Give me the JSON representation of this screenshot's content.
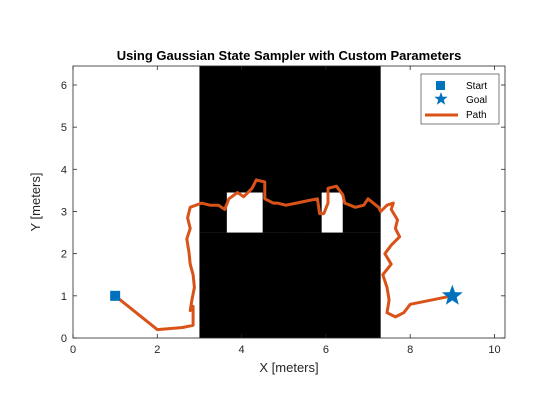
{
  "chart_data": {
    "type": "scatter",
    "title": "Using Gaussian State Sampler with Custom Parameters",
    "xlabel": "X [meters]",
    "ylabel": "Y [meters]",
    "xlim": [
      0,
      10.25
    ],
    "ylim": [
      0,
      6.45
    ],
    "xticks": [
      0,
      2,
      4,
      6,
      8,
      10
    ],
    "yticks": [
      0,
      1,
      2,
      3,
      4,
      5,
      6
    ],
    "grid": false,
    "legend_position": "top-right",
    "colors": {
      "start": "#0072BD",
      "goal": "#0072BD",
      "path": "#D95319",
      "obstacle": "#000000",
      "axes": "#262626"
    },
    "obstacles": [
      [
        3.0,
        3.45,
        7.3,
        6.45
      ],
      [
        3.0,
        0.0,
        7.3,
        2.5
      ],
      [
        3.0,
        2.5,
        3.65,
        3.45
      ],
      [
        4.5,
        2.5,
        5.5,
        3.9
      ],
      [
        5.1,
        2.5,
        5.9,
        3.5
      ],
      [
        6.4,
        2.5,
        7.3,
        3.45
      ],
      [
        3.35,
        2.85,
        3.55,
        3.45
      ],
      [
        4.2,
        3.6,
        4.5,
        3.9
      ],
      [
        6.6,
        3.5,
        6.85,
        3.9
      ],
      [
        6.1,
        3.45,
        6.4,
        3.9
      ],
      [
        4.7,
        2.55,
        4.85,
        2.95
      ]
    ],
    "series": [
      {
        "name": "Start",
        "type": "marker",
        "marker": "square",
        "points": [
          [
            1.0,
            1.0
          ]
        ]
      },
      {
        "name": "Goal",
        "type": "marker",
        "marker": "star",
        "points": [
          [
            9.0,
            1.0
          ]
        ]
      },
      {
        "name": "Path",
        "type": "line",
        "points": [
          [
            1.0,
            1.0
          ],
          [
            1.5,
            0.6
          ],
          [
            2.0,
            0.2
          ],
          [
            2.6,
            0.25
          ],
          [
            2.85,
            0.3
          ],
          [
            2.85,
            0.55
          ],
          [
            2.85,
            0.75
          ],
          [
            2.78,
            0.65
          ],
          [
            2.82,
            0.9
          ],
          [
            2.88,
            1.2
          ],
          [
            2.85,
            1.5
          ],
          [
            2.78,
            1.75
          ],
          [
            2.75,
            2.05
          ],
          [
            2.7,
            2.35
          ],
          [
            2.78,
            2.6
          ],
          [
            2.72,
            2.85
          ],
          [
            2.78,
            3.1
          ],
          [
            3.05,
            3.2
          ],
          [
            3.25,
            3.15
          ],
          [
            3.45,
            3.15
          ],
          [
            3.6,
            3.05
          ],
          [
            3.7,
            3.3
          ],
          [
            3.9,
            3.45
          ],
          [
            4.05,
            3.35
          ],
          [
            4.25,
            3.55
          ],
          [
            4.35,
            3.75
          ],
          [
            4.55,
            3.7
          ],
          [
            4.55,
            3.3
          ],
          [
            4.75,
            3.2
          ],
          [
            4.85,
            3.2
          ],
          [
            5.05,
            3.15
          ],
          [
            5.3,
            3.2
          ],
          [
            5.55,
            3.25
          ],
          [
            5.8,
            3.3
          ],
          [
            5.85,
            2.95
          ],
          [
            5.95,
            2.95
          ],
          [
            6.05,
            3.2
          ],
          [
            6.05,
            3.55
          ],
          [
            6.25,
            3.6
          ],
          [
            6.4,
            3.4
          ],
          [
            6.45,
            3.2
          ],
          [
            6.7,
            3.1
          ],
          [
            6.9,
            3.15
          ],
          [
            7.0,
            3.3
          ],
          [
            7.25,
            3.1
          ],
          [
            7.3,
            3.0
          ],
          [
            7.45,
            3.15
          ],
          [
            7.6,
            3.2
          ],
          [
            7.55,
            3.05
          ],
          [
            7.7,
            2.8
          ],
          [
            7.65,
            2.6
          ],
          [
            7.75,
            2.4
          ],
          [
            7.55,
            2.2
          ],
          [
            7.4,
            2.0
          ],
          [
            7.55,
            1.75
          ],
          [
            7.35,
            1.5
          ],
          [
            7.45,
            1.2
          ],
          [
            7.5,
            0.9
          ],
          [
            7.45,
            0.6
          ],
          [
            7.65,
            0.5
          ],
          [
            7.85,
            0.6
          ],
          [
            8.0,
            0.8
          ],
          [
            9.0,
            1.0
          ]
        ]
      }
    ]
  }
}
